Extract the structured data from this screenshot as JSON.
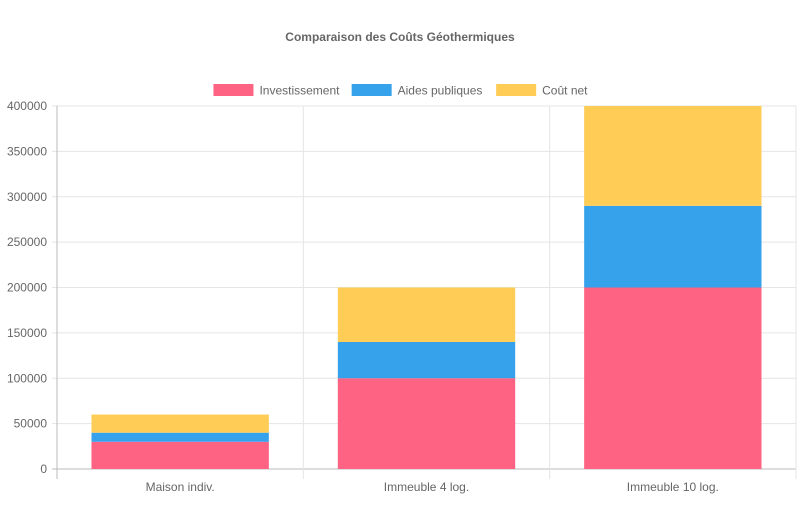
{
  "chart_data": {
    "type": "bar",
    "stacked": true,
    "title": "Comparaison des Coûts Géothermiques",
    "categories": [
      "Maison indiv.",
      "Immeuble 4 log.",
      "Immeuble 10 log."
    ],
    "series": [
      {
        "name": "Investissement",
        "color": "#ff6384",
        "values": [
          30000,
          100000,
          200000
        ]
      },
      {
        "name": "Aides publiques",
        "color": "#36a2eb",
        "values": [
          10000,
          40000,
          90000
        ]
      },
      {
        "name": "Coût net",
        "color": "#ffcd56",
        "values": [
          20000,
          60000,
          110000
        ]
      }
    ],
    "ylim": [
      0,
      400000
    ],
    "yticks": [
      "0",
      "50000",
      "100000",
      "150000",
      "200000",
      "250000",
      "300000",
      "350000",
      "400000"
    ],
    "grid": true,
    "legend": "top"
  }
}
